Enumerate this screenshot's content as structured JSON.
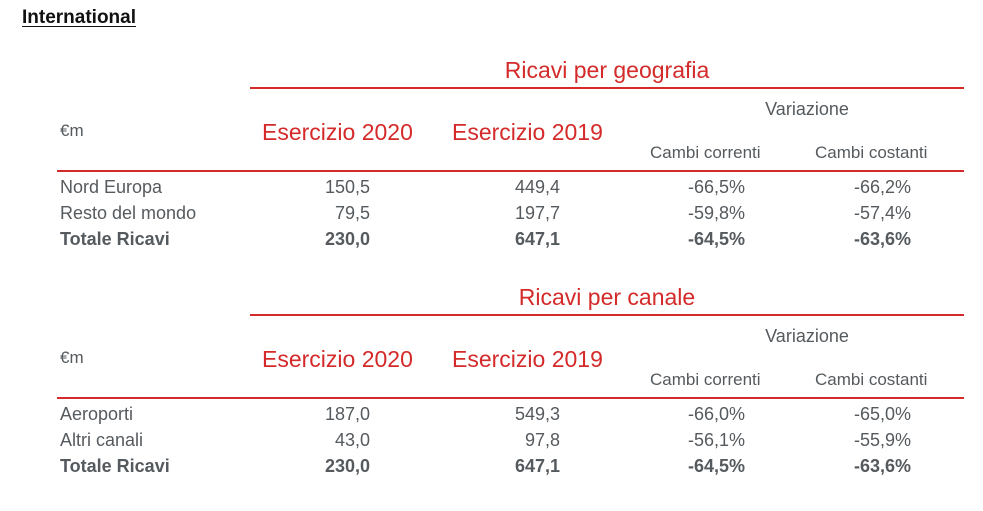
{
  "page_title": "International",
  "tables": [
    {
      "title": "Ricavi per geografia",
      "unit": "€m",
      "variazione_label": "Variazione",
      "col_2020": "Esercizio 2020",
      "col_2019": "Esercizio 2019",
      "col_cambi_correnti": "Cambi correnti",
      "col_cambi_costanti": "Cambi costanti",
      "rows": [
        {
          "label": "Nord Europa",
          "v2020": "150,5",
          "v2019": "449,4",
          "correnti": "-66,5%",
          "costanti": "-66,2%"
        },
        {
          "label": "Resto del mondo",
          "v2020": "79,5",
          "v2019": "197,7",
          "correnti": "-59,8%",
          "costanti": "-57,4%"
        },
        {
          "label": "Totale Ricavi",
          "v2020": "230,0",
          "v2019": "647,1",
          "correnti": "-64,5%",
          "costanti": "-63,6%"
        }
      ]
    },
    {
      "title": "Ricavi per canale",
      "unit": "€m",
      "variazione_label": "Variazione",
      "col_2020": "Esercizio 2020",
      "col_2019": "Esercizio 2019",
      "col_cambi_correnti": "Cambi correnti",
      "col_cambi_costanti": "Cambi costanti",
      "rows": [
        {
          "label": "Aeroporti",
          "v2020": "187,0",
          "v2019": "549,3",
          "correnti": "-66,0%",
          "costanti": "-65,0%"
        },
        {
          "label": "Altri canali",
          "v2020": "43,0",
          "v2019": "97,8",
          "correnti": "-56,1%",
          "costanti": "-55,9%"
        },
        {
          "label": "Totale Ricavi",
          "v2020": "230,0",
          "v2019": "647,1",
          "correnti": "-64,5%",
          "costanti": "-63,6%"
        }
      ]
    }
  ],
  "colors": {
    "accent_red": "#d42a2a",
    "text_gray": "#555a5e",
    "title_black": "#111111"
  }
}
